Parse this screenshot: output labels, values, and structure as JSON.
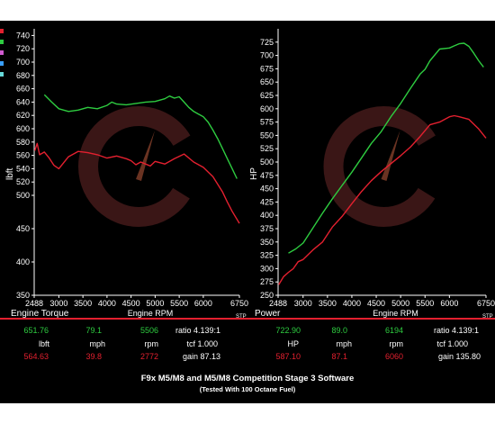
{
  "colors": {
    "green": "#2ecc40",
    "red": "#e3202f",
    "bg": "#000000",
    "watermark": "#3a1616"
  },
  "left_swatches": [
    "#e3202f",
    "#2ecc40",
    "#d05bd0",
    "#3aa0ff",
    "#66d9d9"
  ],
  "chart_data": [
    {
      "type": "line",
      "ylabel": "lbft",
      "xlabel": "Engine RPM",
      "corner_label": "Engine Torque",
      "x_unit_label": "STP",
      "xlim": [
        2488,
        6750
      ],
      "ylim": [
        350,
        750
      ],
      "xticks": [
        2488,
        3000,
        3500,
        4000,
        4500,
        5000,
        5500,
        6000,
        6750
      ],
      "yticks": [
        350,
        400,
        450,
        500,
        520,
        540,
        560,
        580,
        600,
        620,
        640,
        660,
        680,
        700,
        720,
        740
      ],
      "series": [
        {
          "color": "green",
          "x": [
            2700,
            2850,
            3000,
            3200,
            3400,
            3600,
            3800,
            4000,
            4100,
            4200,
            4400,
            4600,
            4800,
            5000,
            5200,
            5300,
            5400,
            5500,
            5600,
            5700,
            5800,
            5900,
            6000,
            6100,
            6200,
            6300,
            6400,
            6500,
            6600,
            6700
          ],
          "y": [
            651,
            640,
            630,
            626,
            628,
            632,
            630,
            635,
            640,
            637,
            636,
            638,
            640,
            641,
            645,
            649,
            646,
            648,
            640,
            632,
            626,
            622,
            618,
            610,
            598,
            585,
            570,
            555,
            540,
            525
          ]
        },
        {
          "color": "red",
          "x": [
            2500,
            2550,
            2600,
            2700,
            2800,
            2900,
            3000,
            3200,
            3400,
            3600,
            3800,
            4000,
            4200,
            4400,
            4500,
            4600,
            4700,
            4800,
            4900,
            5000,
            5200,
            5400,
            5600,
            5800,
            6000,
            6200,
            6400,
            6500,
            6600,
            6750
          ],
          "y": [
            567,
            578,
            561,
            565,
            556,
            545,
            540,
            558,
            566,
            564,
            561,
            556,
            559,
            555,
            552,
            546,
            550,
            547,
            544,
            551,
            547,
            555,
            562,
            550,
            542,
            528,
            505,
            490,
            476,
            458
          ]
        }
      ]
    },
    {
      "type": "line",
      "ylabel": "HP",
      "xlabel": "Engine RPM",
      "corner_label": "Power",
      "x_unit_label": "STP",
      "xlim": [
        2488,
        6750
      ],
      "ylim": [
        250,
        750
      ],
      "xticks": [
        2488,
        3000,
        3500,
        4000,
        4500,
        5000,
        5500,
        6000,
        6750
      ],
      "yticks": [
        250,
        275,
        300,
        325,
        350,
        375,
        400,
        425,
        450,
        475,
        500,
        525,
        550,
        575,
        600,
        625,
        650,
        675,
        700,
        725
      ],
      "series": [
        {
          "color": "green",
          "x": [
            2700,
            2850,
            3000,
            3200,
            3400,
            3600,
            3800,
            4000,
            4200,
            4400,
            4600,
            4800,
            5000,
            5200,
            5400,
            5500,
            5600,
            5800,
            6000,
            6100,
            6200,
            6300,
            6400,
            6500,
            6600,
            6700
          ],
          "y": [
            329,
            337,
            348,
            376,
            404,
            431,
            456,
            481,
            508,
            535,
            557,
            585,
            610,
            638,
            665,
            674,
            690,
            712,
            714,
            718,
            722,
            723,
            717,
            704,
            690,
            678
          ]
        },
        {
          "color": "red",
          "x": [
            2500,
            2600,
            2700,
            2800,
            2900,
            3000,
            3200,
            3400,
            3600,
            3800,
            4000,
            4200,
            4400,
            4600,
            4800,
            5000,
            5200,
            5400,
            5600,
            5800,
            6000,
            6100,
            6200,
            6400,
            6600,
            6750
          ],
          "y": [
            270,
            285,
            293,
            300,
            313,
            317,
            335,
            350,
            378,
            398,
            422,
            445,
            465,
            482,
            497,
            512,
            528,
            548,
            570,
            575,
            585,
            587,
            585,
            580,
            562,
            545
          ]
        }
      ]
    }
  ],
  "stats": {
    "left": {
      "green": [
        "651.76",
        "79.1",
        "5506",
        "ratio 4.139:1"
      ],
      "units": [
        "lbft",
        "mph",
        "rpm",
        "tcf 1.000"
      ],
      "red": [
        "564.63",
        "39.8",
        "2772",
        "gain 87.13"
      ]
    },
    "right": {
      "green": [
        "722.90",
        "89.0",
        "6194",
        "ratio 4.139:1"
      ],
      "units": [
        "HP",
        "mph",
        "rpm",
        "tcf 1.000"
      ],
      "red": [
        "587.10",
        "87.1",
        "6060",
        "gain 135.80"
      ]
    }
  },
  "title": "F9x M5/M8 and M5/M8 Competition Stage 3 Software",
  "subtitle": "(Tested With 100 Octane Fuel)"
}
